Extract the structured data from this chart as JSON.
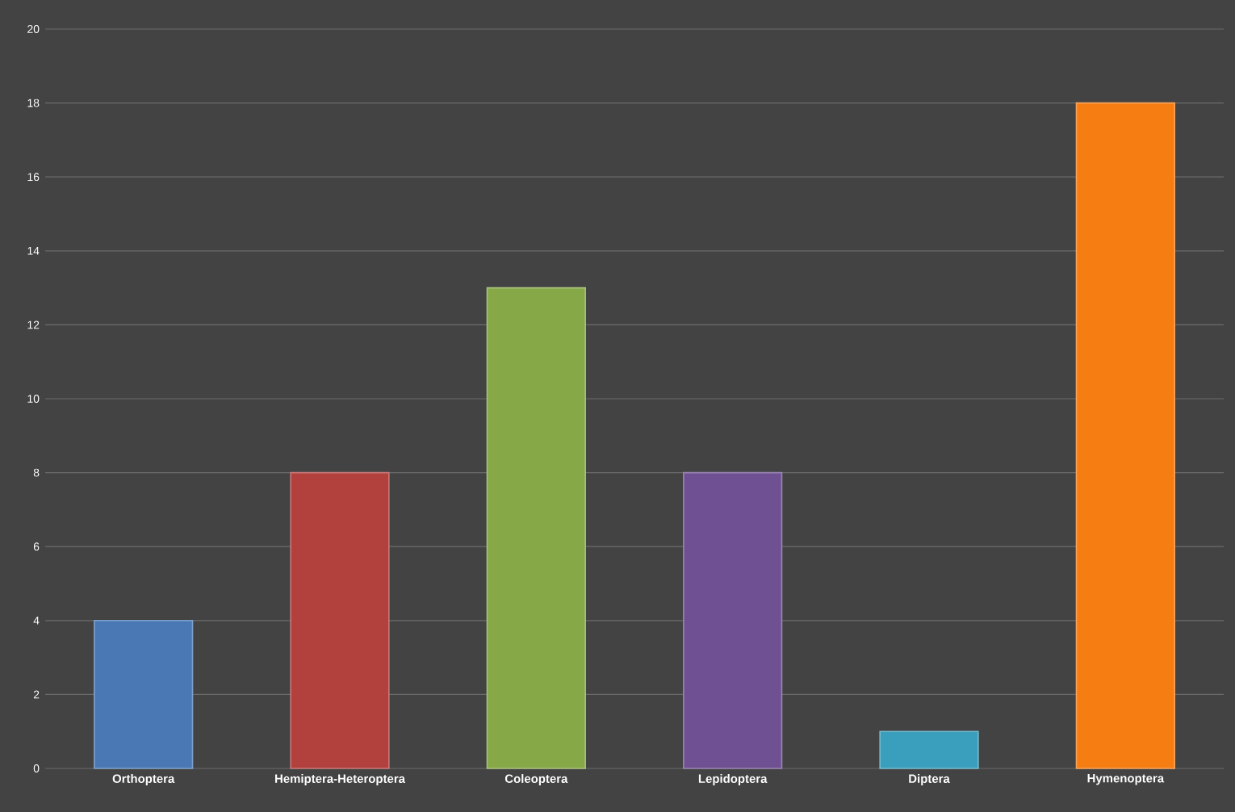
{
  "chart_data": {
    "type": "bar",
    "categories": [
      "Orthoptera",
      "Hemiptera-Heteroptera",
      "Coleoptera",
      "Lepidoptera",
      "Diptera",
      "Hymenoptera"
    ],
    "values": [
      4,
      8,
      13,
      8,
      1,
      18
    ],
    "colors": [
      "#4a78b4",
      "#b2413e",
      "#86a846",
      "#6f5193",
      "#3a9fbc",
      "#f57d12"
    ],
    "ylim": [
      0,
      20
    ],
    "yticks": [
      0,
      2,
      4,
      6,
      8,
      10,
      12,
      14,
      16,
      18,
      20
    ],
    "grid": "y"
  }
}
